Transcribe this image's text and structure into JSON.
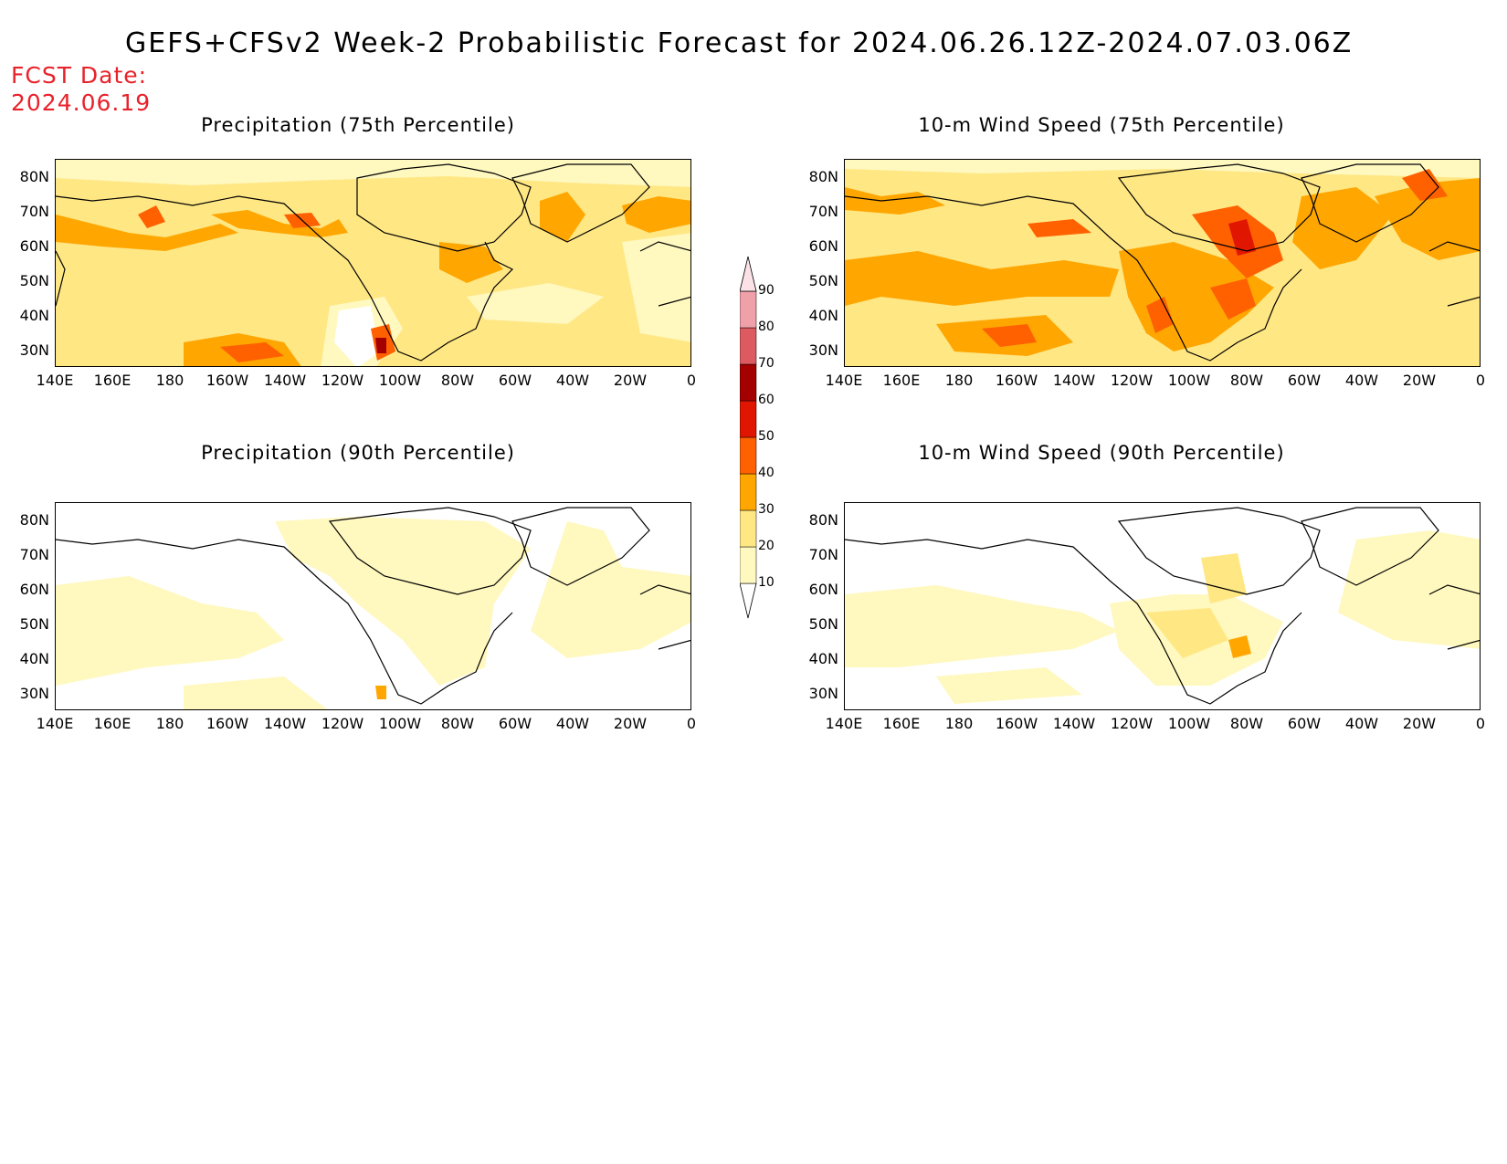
{
  "title": "GEFS+CFSv2 Week-2 Probabilistic Forecast for 2024.06.26.12Z-2024.07.03.06Z",
  "fcst_date_label": "FCST Date:",
  "fcst_date_value": "2024.06.19",
  "lat_labels": [
    "80N",
    "70N",
    "60N",
    "50N",
    "40N",
    "30N"
  ],
  "lon_labels": [
    "140E",
    "160E",
    "180",
    "160W",
    "140W",
    "120W",
    "100W",
    "80W",
    "60W",
    "40W",
    "20W",
    "0"
  ],
  "panels": [
    {
      "id": "precip75",
      "title": "Precipitation (75th Percentile)"
    },
    {
      "id": "wind75",
      "title": "10-m Wind Speed (75th Percentile)"
    },
    {
      "id": "precip90",
      "title": "Precipitation (90th Percentile)"
    },
    {
      "id": "wind90",
      "title": "10-m Wind Speed (90th Percentile)"
    }
  ],
  "colorbar": {
    "levels": [
      "10",
      "20",
      "30",
      "40",
      "50",
      "60",
      "70",
      "80",
      "90"
    ],
    "colors": [
      "#fff8bf",
      "#ffe784",
      "#ffa600",
      "#ff6000",
      "#e11600",
      "#a50000",
      "#dc5a60",
      "#f0a0a8",
      "#fbe2e6"
    ]
  }
}
